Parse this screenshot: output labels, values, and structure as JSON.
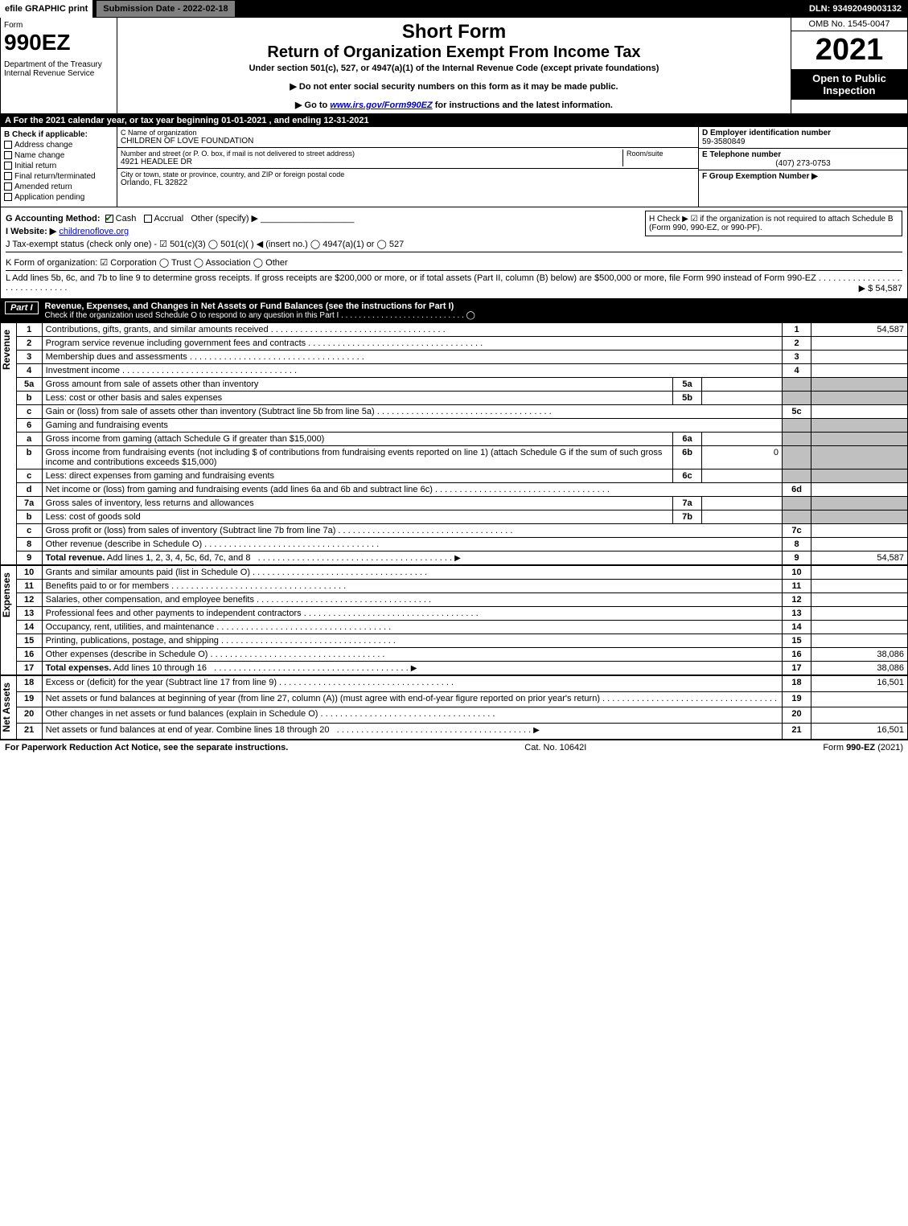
{
  "top_bar": {
    "efile": "efile GRAPHIC print",
    "submission_label": "Submission Date - 2022-02-18",
    "dln": "DLN: 93492049003132"
  },
  "header": {
    "form_word": "Form",
    "form_number": "990EZ",
    "department": "Department of the Treasury\nInternal Revenue Service",
    "short_form": "Short Form",
    "title": "Return of Organization Exempt From Income Tax",
    "subtitle": "Under section 501(c), 527, or 4947(a)(1) of the Internal Revenue Code (except private foundations)",
    "note1": "▶ Do not enter social security numbers on this form as it may be made public.",
    "note2": "▶ Go to www.irs.gov/Form990EZ for instructions and the latest information.",
    "omb": "OMB No. 1545-0047",
    "year": "2021",
    "inspect": "Open to Public Inspection"
  },
  "line_a": "A  For the 2021 calendar year, or tax year beginning 01-01-2021 , and ending 12-31-2021",
  "box_b": {
    "label": "B  Check if applicable:",
    "items": [
      "Address change",
      "Name change",
      "Initial return",
      "Final return/terminated",
      "Amended return",
      "Application pending"
    ]
  },
  "box_c": {
    "name_label": "C Name of organization",
    "name": "CHILDREN OF LOVE FOUNDATION",
    "street_label": "Number and street (or P. O. box, if mail is not delivered to street address)",
    "room_label": "Room/suite",
    "street": "4921 HEADLEE DR",
    "city_label": "City or town, state or province, country, and ZIP or foreign postal code",
    "city": "Orlando, FL  32822"
  },
  "box_defg": {
    "d_label": "D Employer identification number",
    "d_val": "59-3580849",
    "e_label": "E Telephone number",
    "e_val": "(407) 273-0753",
    "f_label": "F Group Exemption Number  ▶"
  },
  "g_line": {
    "label": "G Accounting Method:",
    "cash": "Cash",
    "accrual": "Accrual",
    "other": "Other (specify) ▶"
  },
  "h_line": "H  Check ▶ ☑ if the organization is not required to attach Schedule B (Form 990, 990-EZ, or 990-PF).",
  "i_line": {
    "label": "I Website: ▶",
    "val": "childrenoflove.org"
  },
  "j_line": "J Tax-exempt status (check only one) - ☑ 501(c)(3)  ◯ 501(c)(  ) ◀ (insert no.)  ◯ 4947(a)(1) or  ◯ 527",
  "k_line": "K Form of organization:  ☑ Corporation  ◯ Trust  ◯ Association  ◯ Other",
  "l_line": {
    "text": "L Add lines 5b, 6c, and 7b to line 9 to determine gross receipts. If gross receipts are $200,000 or more, or if total assets (Part II, column (B) below) are $500,000 or more, file Form 990 instead of Form 990-EZ",
    "amount": "▶ $ 54,587"
  },
  "part1": {
    "num": "Part I",
    "title": "Revenue, Expenses, and Changes in Net Assets or Fund Balances (see the instructions for Part I)",
    "sub": "Check if the organization used Schedule O to respond to any question in this Part I",
    "chk": "◯"
  },
  "side_labels": {
    "rev": "Revenue",
    "exp": "Expenses",
    "net": "Net Assets"
  },
  "revenue": [
    {
      "n": "1",
      "d": "Contributions, gifts, grants, and similar amounts received",
      "k": "1",
      "v": "54,587"
    },
    {
      "n": "2",
      "d": "Program service revenue including government fees and contracts",
      "k": "2",
      "v": ""
    },
    {
      "n": "3",
      "d": "Membership dues and assessments",
      "k": "3",
      "v": ""
    },
    {
      "n": "4",
      "d": "Investment income",
      "k": "4",
      "v": ""
    },
    {
      "n": "5a",
      "d": "Gross amount from sale of assets other than inventory",
      "mk": "5a",
      "mv": "",
      "shade": true
    },
    {
      "n": "b",
      "d": "Less: cost or other basis and sales expenses",
      "mk": "5b",
      "mv": "",
      "shade": true
    },
    {
      "n": "c",
      "d": "Gain or (loss) from sale of assets other than inventory (Subtract line 5b from line 5a)",
      "k": "5c",
      "v": ""
    },
    {
      "n": "6",
      "d": "Gaming and fundraising events",
      "shade": true,
      "noval": true
    },
    {
      "n": "a",
      "d": "Gross income from gaming (attach Schedule G if greater than $15,000)",
      "mk": "6a",
      "mv": "",
      "shade": true
    },
    {
      "n": "b",
      "d": "Gross income from fundraising events (not including $                       of contributions from fundraising events reported on line 1) (attach Schedule G if the sum of such gross income and contributions exceeds $15,000)",
      "mk": "6b",
      "mv": "0",
      "shade": true
    },
    {
      "n": "c",
      "d": "Less: direct expenses from gaming and fundraising events",
      "mk": "6c",
      "mv": "",
      "shade": true
    },
    {
      "n": "d",
      "d": "Net income or (loss) from gaming and fundraising events (add lines 6a and 6b and subtract line 6c)",
      "k": "6d",
      "v": ""
    },
    {
      "n": "7a",
      "d": "Gross sales of inventory, less returns and allowances",
      "mk": "7a",
      "mv": "",
      "shade": true
    },
    {
      "n": "b",
      "d": "Less: cost of goods sold",
      "mk": "7b",
      "mv": "",
      "shade": true
    },
    {
      "n": "c",
      "d": "Gross profit or (loss) from sales of inventory (Subtract line 7b from line 7a)",
      "k": "7c",
      "v": ""
    },
    {
      "n": "8",
      "d": "Other revenue (describe in Schedule O)",
      "k": "8",
      "v": ""
    },
    {
      "n": "9",
      "d": "Total revenue. Add lines 1, 2, 3, 4, 5c, 6d, 7c, and 8",
      "k": "9",
      "v": "54,587",
      "bold": true,
      "arrow": true
    }
  ],
  "expenses": [
    {
      "n": "10",
      "d": "Grants and similar amounts paid (list in Schedule O)",
      "k": "10",
      "v": ""
    },
    {
      "n": "11",
      "d": "Benefits paid to or for members",
      "k": "11",
      "v": ""
    },
    {
      "n": "12",
      "d": "Salaries, other compensation, and employee benefits",
      "k": "12",
      "v": ""
    },
    {
      "n": "13",
      "d": "Professional fees and other payments to independent contractors",
      "k": "13",
      "v": ""
    },
    {
      "n": "14",
      "d": "Occupancy, rent, utilities, and maintenance",
      "k": "14",
      "v": ""
    },
    {
      "n": "15",
      "d": "Printing, publications, postage, and shipping",
      "k": "15",
      "v": ""
    },
    {
      "n": "16",
      "d": "Other expenses (describe in Schedule O)",
      "k": "16",
      "v": "38,086"
    },
    {
      "n": "17",
      "d": "Total expenses. Add lines 10 through 16",
      "k": "17",
      "v": "38,086",
      "bold": true,
      "arrow": true
    }
  ],
  "netassets": [
    {
      "n": "18",
      "d": "Excess or (deficit) for the year (Subtract line 17 from line 9)",
      "k": "18",
      "v": "16,501"
    },
    {
      "n": "19",
      "d": "Net assets or fund balances at beginning of year (from line 27, column (A)) (must agree with end-of-year figure reported on prior year's return)",
      "k": "19",
      "v": ""
    },
    {
      "n": "20",
      "d": "Other changes in net assets or fund balances (explain in Schedule O)",
      "k": "20",
      "v": ""
    },
    {
      "n": "21",
      "d": "Net assets or fund balances at end of year. Combine lines 18 through 20",
      "k": "21",
      "v": "16,501",
      "arrow": true
    }
  ],
  "footer": {
    "left": "For Paperwork Reduction Act Notice, see the separate instructions.",
    "mid": "Cat. No. 10642I",
    "right": "Form 990-EZ (2021)"
  },
  "colors": {
    "black": "#000000",
    "white": "#ffffff",
    "gray": "#808080",
    "shade": "#c0c0c0",
    "link": "#0000cc",
    "check": "#006000"
  }
}
